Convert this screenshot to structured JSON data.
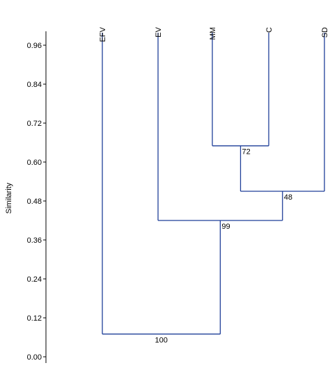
{
  "chart_data": {
    "type": "dendrogram",
    "ylabel": "Similarity",
    "ylim": [
      0,
      1.0
    ],
    "yticks": [
      "0.00",
      "0.12",
      "0.24",
      "0.36",
      "0.48",
      "0.60",
      "0.72",
      "0.84",
      "0.96"
    ],
    "leaves": [
      "EFV",
      "EV",
      "MM",
      "C",
      "SD"
    ],
    "merges": [
      {
        "left": "MM",
        "right": "C",
        "similarity": 0.65,
        "label": "72"
      },
      {
        "left": "MM+C",
        "right": "SD",
        "similarity": 0.51,
        "label": "48"
      },
      {
        "left": "EV",
        "right": "MM+C+SD",
        "similarity": 0.42,
        "label": "99"
      },
      {
        "left": "EFV",
        "right": "EV+MM+C+SD",
        "similarity": 0.07,
        "label": "100"
      }
    ],
    "colors": {
      "branch": "#1f3f99",
      "axis": "#000000"
    }
  }
}
